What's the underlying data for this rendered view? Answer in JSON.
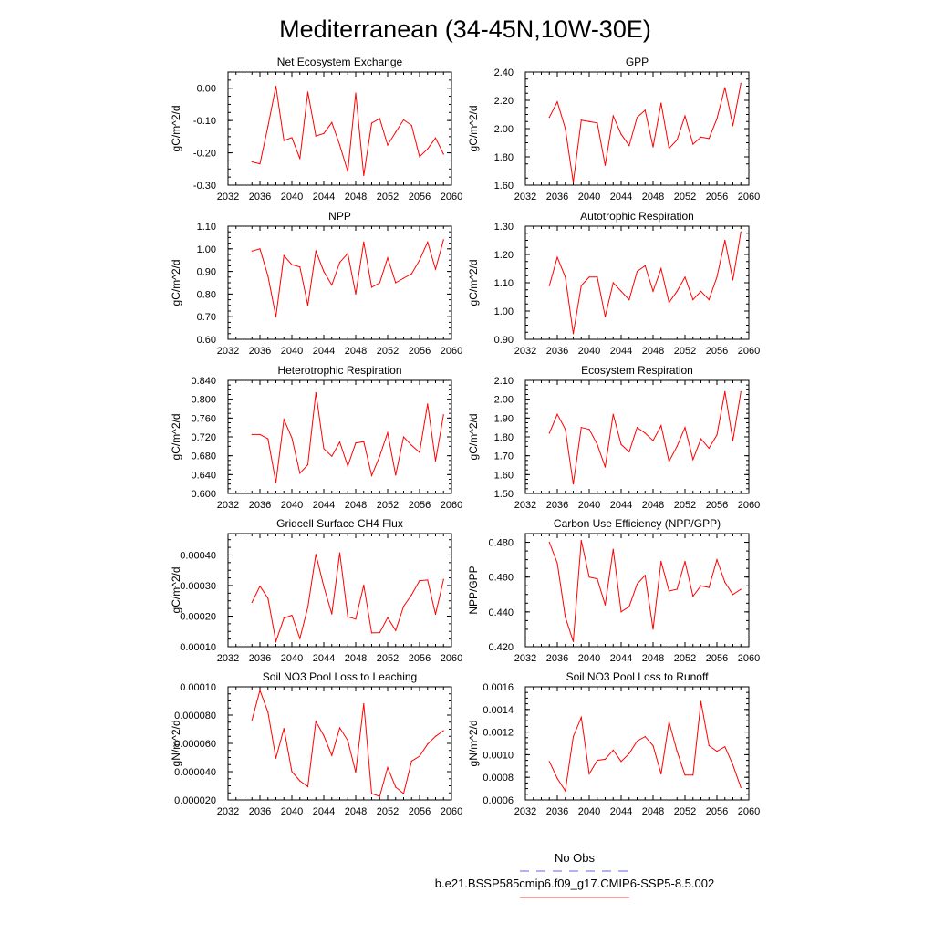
{
  "figure": {
    "title": "Mediterranean (34-45N,10W-30E)",
    "legend": {
      "obs_label": "No Obs",
      "obs_color": "#6666dd",
      "model_label": "b.e21.BSSP585cmip6.f09_g17.CMIP6-SSP5-8.5.002",
      "model_color": "#dd4444"
    }
  },
  "chart_data": [
    {
      "type": "line",
      "title": "Net Ecosystem Exchange",
      "ylabel": "gC/m^2/d",
      "xlim": [
        2032,
        2060
      ],
      "xticks": [
        "2032",
        "2036",
        "2040",
        "2044",
        "2048",
        "2052",
        "2056",
        "2060"
      ],
      "ylim": [
        -0.3,
        0.05
      ],
      "yticks": [
        "-0.30",
        "-0.20",
        "-0.10",
        "0.00"
      ],
      "ytick_values": [
        -0.3,
        -0.2,
        -0.1,
        0.0
      ],
      "series": [
        {
          "color": "#ff0000",
          "x": [
            2035,
            2036,
            2037,
            2038,
            2039,
            2040,
            2041,
            2042,
            2043,
            2044,
            2045,
            2046,
            2047,
            2048,
            2049,
            2050,
            2051,
            2052,
            2053,
            2054,
            2055,
            2056,
            2057,
            2058,
            2059
          ],
          "values": [
            -0.228,
            -0.234,
            -0.118,
            0.006,
            -0.162,
            -0.153,
            -0.218,
            -0.012,
            -0.148,
            -0.14,
            -0.106,
            -0.176,
            -0.258,
            -0.015,
            -0.27,
            -0.108,
            -0.094,
            -0.176,
            -0.136,
            -0.098,
            -0.115,
            -0.212,
            -0.188,
            -0.154,
            -0.204
          ]
        }
      ]
    },
    {
      "type": "line",
      "title": "GPP",
      "ylabel": "gC/m^2/d",
      "xlim": [
        2032,
        2060
      ],
      "xticks": [
        "2032",
        "2036",
        "2040",
        "2044",
        "2048",
        "2052",
        "2056",
        "2060"
      ],
      "ylim": [
        1.6,
        2.4
      ],
      "yticks": [
        "1.60",
        "1.80",
        "2.00",
        "2.20",
        "2.40"
      ],
      "ytick_values": [
        1.6,
        1.8,
        2.0,
        2.2,
        2.4
      ],
      "series": [
        {
          "color": "#ff0000",
          "x": [
            2035,
            2036,
            2037,
            2038,
            2039,
            2040,
            2041,
            2042,
            2043,
            2044,
            2045,
            2046,
            2047,
            2048,
            2049,
            2050,
            2051,
            2052,
            2053,
            2054,
            2055,
            2056,
            2057,
            2058,
            2059
          ],
          "values": [
            2.08,
            2.19,
            2.0,
            1.62,
            2.06,
            2.05,
            2.04,
            1.74,
            2.09,
            1.96,
            1.88,
            2.08,
            2.13,
            1.87,
            2.18,
            1.86,
            1.92,
            2.09,
            1.89,
            1.94,
            1.93,
            2.07,
            2.29,
            2.02,
            2.32
          ]
        }
      ]
    },
    {
      "type": "line",
      "title": "NPP",
      "ylabel": "gC/m^2/d",
      "xlim": [
        2032,
        2060
      ],
      "xticks": [
        "2032",
        "2036",
        "2040",
        "2044",
        "2048",
        "2052",
        "2056",
        "2060"
      ],
      "ylim": [
        0.6,
        1.1
      ],
      "yticks": [
        "0.60",
        "0.70",
        "0.80",
        "0.90",
        "1.00",
        "1.10"
      ],
      "ytick_values": [
        0.6,
        0.7,
        0.8,
        0.9,
        1.0,
        1.1
      ],
      "series": [
        {
          "color": "#ff0000",
          "x": [
            2035,
            2036,
            2037,
            2038,
            2039,
            2040,
            2041,
            2042,
            2043,
            2044,
            2045,
            2046,
            2047,
            2048,
            2049,
            2050,
            2051,
            2052,
            2053,
            2054,
            2055,
            2056,
            2057,
            2058,
            2059
          ],
          "values": [
            0.99,
            1.0,
            0.88,
            0.7,
            0.97,
            0.93,
            0.92,
            0.75,
            0.99,
            0.9,
            0.84,
            0.94,
            0.98,
            0.8,
            1.03,
            0.83,
            0.85,
            0.96,
            0.85,
            0.87,
            0.89,
            0.95,
            1.03,
            0.91,
            1.04
          ]
        }
      ]
    },
    {
      "type": "line",
      "title": "Autotrophic Respiration",
      "ylabel": "gC/m^2/d",
      "xlim": [
        2032,
        2060
      ],
      "xticks": [
        "2032",
        "2036",
        "2040",
        "2044",
        "2048",
        "2052",
        "2056",
        "2060"
      ],
      "ylim": [
        0.9,
        1.3
      ],
      "yticks": [
        "0.90",
        "1.00",
        "1.10",
        "1.20",
        "1.30"
      ],
      "ytick_values": [
        0.9,
        1.0,
        1.1,
        1.2,
        1.3
      ],
      "series": [
        {
          "color": "#ff0000",
          "x": [
            2035,
            2036,
            2037,
            2038,
            2039,
            2040,
            2041,
            2042,
            2043,
            2044,
            2045,
            2046,
            2047,
            2048,
            2049,
            2050,
            2051,
            2052,
            2053,
            2054,
            2055,
            2056,
            2057,
            2058,
            2059
          ],
          "values": [
            1.09,
            1.19,
            1.12,
            0.92,
            1.09,
            1.12,
            1.12,
            0.98,
            1.1,
            1.07,
            1.04,
            1.14,
            1.16,
            1.07,
            1.15,
            1.03,
            1.07,
            1.12,
            1.04,
            1.07,
            1.04,
            1.12,
            1.25,
            1.11,
            1.28
          ]
        }
      ]
    },
    {
      "type": "line",
      "title": "Heterotrophic Respiration",
      "ylabel": "gC/m^2/d",
      "xlim": [
        2032,
        2060
      ],
      "xticks": [
        "2032",
        "2036",
        "2040",
        "2044",
        "2048",
        "2052",
        "2056",
        "2060"
      ],
      "ylim": [
        0.6,
        0.84
      ],
      "yticks": [
        "0.600",
        "0.640",
        "0.680",
        "0.720",
        "0.760",
        "0.800",
        "0.840"
      ],
      "ytick_values": [
        0.6,
        0.64,
        0.68,
        0.72,
        0.76,
        0.8,
        0.84
      ],
      "series": [
        {
          "color": "#ff0000",
          "x": [
            2035,
            2036,
            2037,
            2038,
            2039,
            2040,
            2041,
            2042,
            2043,
            2044,
            2045,
            2046,
            2047,
            2048,
            2049,
            2050,
            2051,
            2052,
            2053,
            2054,
            2055,
            2056,
            2057,
            2058,
            2059
          ],
          "values": [
            0.725,
            0.725,
            0.716,
            0.623,
            0.757,
            0.718,
            0.643,
            0.661,
            0.814,
            0.695,
            0.679,
            0.709,
            0.658,
            0.707,
            0.71,
            0.638,
            0.679,
            0.729,
            0.639,
            0.72,
            0.702,
            0.687,
            0.79,
            0.669,
            0.767
          ]
        }
      ]
    },
    {
      "type": "line",
      "title": "Ecosystem Respiration",
      "ylabel": "gC/m^2/d",
      "xlim": [
        2032,
        2060
      ],
      "xticks": [
        "2032",
        "2036",
        "2040",
        "2044",
        "2048",
        "2052",
        "2056",
        "2060"
      ],
      "ylim": [
        1.5,
        2.1
      ],
      "yticks": [
        "1.50",
        "1.60",
        "1.70",
        "1.80",
        "1.90",
        "2.00",
        "2.10"
      ],
      "ytick_values": [
        1.5,
        1.6,
        1.7,
        1.8,
        1.9,
        2.0,
        2.1
      ],
      "series": [
        {
          "color": "#ff0000",
          "x": [
            2035,
            2036,
            2037,
            2038,
            2039,
            2040,
            2041,
            2042,
            2043,
            2044,
            2045,
            2046,
            2047,
            2048,
            2049,
            2050,
            2051,
            2052,
            2053,
            2054,
            2055,
            2056,
            2057,
            2058,
            2059
          ],
          "values": [
            1.82,
            1.92,
            1.84,
            1.55,
            1.85,
            1.84,
            1.76,
            1.64,
            1.92,
            1.76,
            1.72,
            1.85,
            1.82,
            1.78,
            1.86,
            1.67,
            1.75,
            1.85,
            1.68,
            1.79,
            1.74,
            1.81,
            2.04,
            1.78,
            2.04
          ]
        }
      ]
    },
    {
      "type": "line",
      "title": "Gridcell Surface CH4 Flux",
      "ylabel": "gC/m^2/d",
      "xlim": [
        2032,
        2060
      ],
      "xticks": [
        "2032",
        "2036",
        "2040",
        "2044",
        "2048",
        "2052",
        "2056",
        "2060"
      ],
      "ylim": [
        0.0001,
        0.00047
      ],
      "yticks": [
        "0.00010",
        "0.00020",
        "0.00030",
        "0.00040"
      ],
      "ytick_values": [
        0.0001,
        0.0002,
        0.0003,
        0.0004
      ],
      "series": [
        {
          "color": "#ff0000",
          "x": [
            2035,
            2036,
            2037,
            2038,
            2039,
            2040,
            2041,
            2042,
            2043,
            2044,
            2045,
            2046,
            2047,
            2048,
            2049,
            2050,
            2051,
            2052,
            2053,
            2054,
            2055,
            2056,
            2057,
            2058,
            2059
          ],
          "values": [
            0.000245,
            0.000298,
            0.000258,
            0.000117,
            0.000193,
            0.000203,
            0.000127,
            0.000229,
            0.000402,
            0.000297,
            0.000207,
            0.000407,
            0.000198,
            0.00019,
            0.000301,
            0.000145,
            0.000146,
            0.000195,
            0.000153,
            0.000232,
            0.00027,
            0.000316,
            0.000318,
            0.000206,
            0.00032
          ]
        }
      ]
    },
    {
      "type": "line",
      "title": "Carbon Use Efficiency (NPP/GPP)",
      "ylabel": "NPP/GPP",
      "xlim": [
        2032,
        2060
      ],
      "xticks": [
        "2032",
        "2036",
        "2040",
        "2044",
        "2048",
        "2052",
        "2056",
        "2060"
      ],
      "ylim": [
        0.42,
        0.485
      ],
      "yticks": [
        "0.420",
        "0.440",
        "0.460",
        "0.480"
      ],
      "ytick_values": [
        0.42,
        0.44,
        0.46,
        0.48
      ],
      "series": [
        {
          "color": "#ff0000",
          "x": [
            2035,
            2036,
            2037,
            2038,
            2039,
            2040,
            2041,
            2042,
            2043,
            2044,
            2045,
            2046,
            2047,
            2048,
            2049,
            2050,
            2051,
            2052,
            2053,
            2054,
            2055,
            2056,
            2057,
            2058,
            2059
          ],
          "values": [
            0.48,
            0.468,
            0.437,
            0.423,
            0.481,
            0.46,
            0.459,
            0.444,
            0.476,
            0.44,
            0.443,
            0.456,
            0.461,
            0.43,
            0.469,
            0.452,
            0.453,
            0.469,
            0.449,
            0.455,
            0.454,
            0.47,
            0.457,
            0.45,
            0.453
          ]
        }
      ]
    },
    {
      "type": "line",
      "title": "Soil NO3 Pool Loss to Leaching",
      "ylabel": "gN/m^2/d",
      "xlim": [
        2032,
        2060
      ],
      "xticks": [
        "2032",
        "2036",
        "2040",
        "2044",
        "2048",
        "2052",
        "2056",
        "2060"
      ],
      "ylim": [
        2e-05,
        0.0001
      ],
      "yticks": [
        "0.000020",
        "0.000040",
        "0.000060",
        "0.000080",
        "0.00010"
      ],
      "ytick_values": [
        2e-05,
        4e-05,
        6e-05,
        8e-05,
        0.0001
      ],
      "series": [
        {
          "color": "#ff0000",
          "x": [
            2035,
            2036,
            2037,
            2038,
            2039,
            2040,
            2041,
            2042,
            2043,
            2044,
            2045,
            2046,
            2047,
            2048,
            2049,
            2050,
            2051,
            2052,
            2053,
            2054,
            2055,
            2056,
            2057,
            2058,
            2059
          ],
          "values": [
            7.65e-05,
            9.75e-05,
            8.2e-05,
            4.95e-05,
            7.05e-05,
            4e-05,
            3.35e-05,
            2.95e-05,
            7.55e-05,
            6.55e-05,
            5.15e-05,
            7.1e-05,
            6.2e-05,
            3.95e-05,
            8.8e-05,
            2.45e-05,
            2.25e-05,
            4.3e-05,
            2.9e-05,
            2.45e-05,
            4.75e-05,
            5.1e-05,
            5.95e-05,
            6.5e-05,
            6.9e-05
          ]
        }
      ]
    },
    {
      "type": "line",
      "title": "Soil NO3 Pool Loss to Runoff",
      "ylabel": "gN/m^2/d",
      "xlim": [
        2032,
        2060
      ],
      "xticks": [
        "2032",
        "2036",
        "2040",
        "2044",
        "2048",
        "2052",
        "2056",
        "2060"
      ],
      "ylim": [
        0.0006,
        0.0016
      ],
      "yticks": [
        "0.0006",
        "0.0008",
        "0.0010",
        "0.0012",
        "0.0014",
        "0.0016"
      ],
      "ytick_values": [
        0.0006,
        0.0008,
        0.001,
        0.0012,
        0.0014,
        0.0016
      ],
      "series": [
        {
          "color": "#ff0000",
          "x": [
            2035,
            2036,
            2037,
            2038,
            2039,
            2040,
            2041,
            2042,
            2043,
            2044,
            2045,
            2046,
            2047,
            2048,
            2049,
            2050,
            2051,
            2052,
            2053,
            2054,
            2055,
            2056,
            2057,
            2058,
            2059
          ],
          "values": [
            0.00094,
            0.00079,
            0.00068,
            0.00116,
            0.00133,
            0.00083,
            0.00095,
            0.00096,
            0.00104,
            0.00094,
            0.00101,
            0.00112,
            0.00116,
            0.00108,
            0.00083,
            0.00129,
            0.00103,
            0.00082,
            0.00082,
            0.00147,
            0.00108,
            0.00103,
            0.00107,
            0.00091,
            0.00071
          ]
        }
      ]
    }
  ]
}
